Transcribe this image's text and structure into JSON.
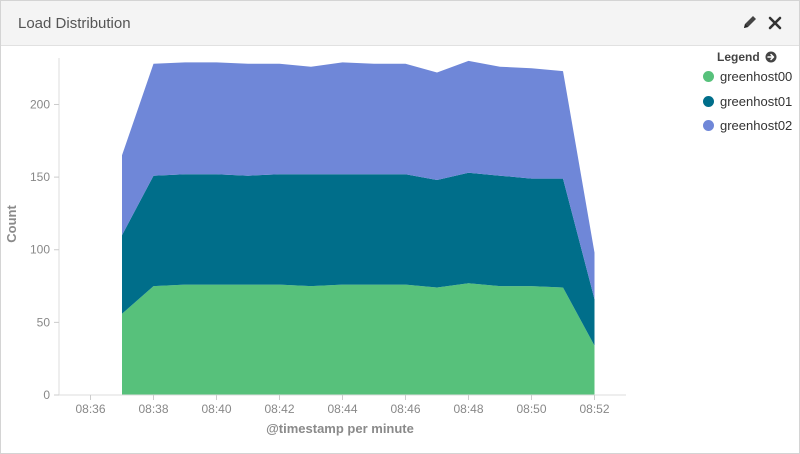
{
  "panel": {
    "title": "Load Distribution",
    "edit_icon": "pencil-icon",
    "close_icon": "close-icon"
  },
  "legend": {
    "title": "Legend",
    "toggle_icon": "arrow-circle-right-icon",
    "items": [
      {
        "label": "greenhost00",
        "color": "#57c17b"
      },
      {
        "label": "greenhost01",
        "color": "#006e8a"
      },
      {
        "label": "greenhost02",
        "color": "#6f87d8"
      }
    ]
  },
  "chart_data": {
    "type": "area",
    "stacked": true,
    "xlabel": "@timestamp per minute",
    "ylabel": "Count",
    "x_ticks": [
      "08:36",
      "08:38",
      "08:40",
      "08:42",
      "08:44",
      "08:46",
      "08:48",
      "08:50",
      "08:52"
    ],
    "x": [
      "08:37",
      "08:38",
      "08:39",
      "08:40",
      "08:41",
      "08:42",
      "08:43",
      "08:44",
      "08:45",
      "08:46",
      "08:47",
      "08:48",
      "08:49",
      "08:50",
      "08:51",
      "08:52"
    ],
    "xlim": [
      "08:35",
      "08:53"
    ],
    "y_ticks": [
      0,
      50,
      100,
      150,
      200
    ],
    "ylim": [
      0,
      232
    ],
    "grid": false,
    "legend_position": "right",
    "series": [
      {
        "name": "greenhost00",
        "color": "#57c17b",
        "values": [
          56,
          75,
          76,
          76,
          76,
          76,
          75,
          76,
          76,
          76,
          74,
          77,
          75,
          75,
          74,
          34
        ]
      },
      {
        "name": "greenhost01",
        "color": "#006e8a",
        "values": [
          54,
          76,
          76,
          76,
          75,
          76,
          77,
          76,
          76,
          76,
          74,
          76,
          76,
          74,
          75,
          32
        ]
      },
      {
        "name": "greenhost02",
        "color": "#6f87d8",
        "values": [
          55,
          77,
          77,
          77,
          77,
          76,
          74,
          77,
          76,
          76,
          74,
          77,
          75,
          76,
          74,
          32
        ]
      }
    ]
  }
}
